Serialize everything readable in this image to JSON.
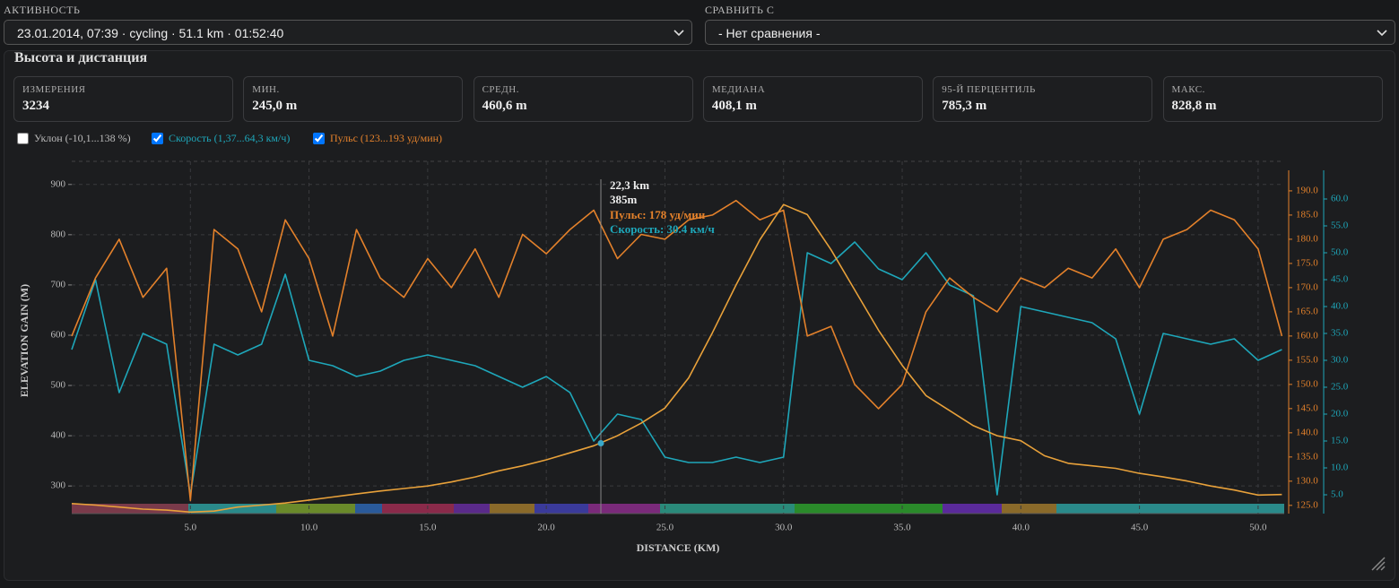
{
  "header": {
    "activity_label": "АКТИВНОСТЬ",
    "activity_value": "23.01.2014, 07:39 · cycling · 51.1 km · 01:52:40",
    "compare_label": "СРАВНИТЬ С",
    "compare_value": "- Нет сравнения -"
  },
  "panel": {
    "title": "Высота и дистанция"
  },
  "stats": [
    {
      "label": "ИЗМЕРЕНИЯ",
      "value": "3234"
    },
    {
      "label": "МИН.",
      "value": "245,0 m"
    },
    {
      "label": "СРЕДН.",
      "value": "460,6 m"
    },
    {
      "label": "МЕДИАНА",
      "value": "408,1 m"
    },
    {
      "label": "95-Й ПЕРЦЕНТИЛЬ",
      "value": "785,3 m"
    },
    {
      "label": "МАКС.",
      "value": "828,8 m"
    }
  ],
  "chart_data": {
    "type": "line",
    "xlabel": "DISTANCE (KM)",
    "ylabel": "ELEVATION GAIN (M)",
    "grid": true,
    "x": [
      0,
      1,
      2,
      3,
      4,
      5,
      6,
      7,
      8,
      9,
      10,
      11,
      12,
      13,
      14,
      15,
      16,
      17,
      18,
      19,
      20,
      21,
      22,
      23,
      24,
      25,
      26,
      27,
      28,
      29,
      30,
      31,
      32,
      33,
      34,
      35,
      36,
      37,
      38,
      39,
      40,
      41,
      42,
      43,
      44,
      45,
      46,
      47,
      48,
      49,
      50,
      51
    ],
    "xlim": [
      0,
      51.1
    ],
    "xticks": [
      {
        "value": 5,
        "label": "5.0"
      },
      {
        "value": 10,
        "label": "10.0"
      },
      {
        "value": 15,
        "label": "15.0"
      },
      {
        "value": 20,
        "label": "20.0"
      },
      {
        "value": 25,
        "label": "25.0"
      },
      {
        "value": 30,
        "label": "30.0"
      },
      {
        "value": 35,
        "label": "35.0"
      },
      {
        "value": 40,
        "label": "40.0"
      },
      {
        "value": 45,
        "label": "45.0"
      },
      {
        "value": 50,
        "label": "50.0"
      }
    ],
    "ylim": [
      245,
      946
    ],
    "yticks": [
      300,
      400,
      500,
      600,
      700,
      800,
      900
    ],
    "y2lim": [
      123.3,
      196.1
    ],
    "y2ticks": [
      {
        "value": 125,
        "label": "125.0"
      },
      {
        "value": 130,
        "label": "130.0"
      },
      {
        "value": 135,
        "label": "135.0"
      },
      {
        "value": 140,
        "label": "140.0"
      },
      {
        "value": 145,
        "label": "145.0"
      },
      {
        "value": 150,
        "label": "150.0"
      },
      {
        "value": 155,
        "label": "155.0"
      },
      {
        "value": 160,
        "label": "160.0"
      },
      {
        "value": 165,
        "label": "165.0"
      },
      {
        "value": 170,
        "label": "170.0"
      },
      {
        "value": 175,
        "label": "175.0"
      },
      {
        "value": 180,
        "label": "180.0"
      },
      {
        "value": 185,
        "label": "185.0"
      },
      {
        "value": 190,
        "label": "190.0"
      }
    ],
    "y3lim": [
      1.5,
      67
    ],
    "y3ticks": [
      {
        "value": 5,
        "label": "5.0"
      },
      {
        "value": 10,
        "label": "10.0"
      },
      {
        "value": 15,
        "label": "15.0"
      },
      {
        "value": 20,
        "label": "20.0"
      },
      {
        "value": 25,
        "label": "25.0"
      },
      {
        "value": 30,
        "label": "30.0"
      },
      {
        "value": 35,
        "label": "35.0"
      },
      {
        "value": 40,
        "label": "40.0"
      },
      {
        "value": 45,
        "label": "45.0"
      },
      {
        "value": 50,
        "label": "50.0"
      },
      {
        "value": 55,
        "label": "55.0"
      },
      {
        "value": 60,
        "label": "60.0"
      }
    ],
    "elevation": {
      "color": "#e8a13a",
      "values": [
        265,
        262,
        258,
        254,
        252,
        248,
        250,
        258,
        262,
        266,
        272,
        278,
        284,
        290,
        295,
        300,
        308,
        318,
        330,
        340,
        352,
        366,
        380,
        400,
        425,
        455,
        515,
        605,
        700,
        790,
        860,
        840,
        770,
        690,
        610,
        540,
        480,
        450,
        420,
        400,
        390,
        360,
        345,
        340,
        335,
        325,
        318,
        310,
        300,
        292,
        282,
        283
      ]
    },
    "series": [
      {
        "name": "Уклон (-10,1...138 %)",
        "checked": false,
        "color": "#aaaaaa"
      },
      {
        "name": "Скорость (1,37...64,3 км/ч)",
        "checked": true,
        "color": "#1ea7ba",
        "axis": "y3",
        "values": [
          32,
          45,
          24,
          35,
          33,
          5,
          33,
          31,
          33,
          46,
          30,
          29,
          27,
          28,
          30,
          31,
          30,
          29,
          27,
          25,
          27,
          24,
          15,
          20,
          19,
          12,
          11,
          11,
          12,
          11,
          12,
          50,
          48,
          52,
          47,
          45,
          50,
          44,
          42,
          5,
          40,
          39,
          38,
          37,
          34,
          20,
          35,
          34,
          33,
          34,
          30,
          32
        ]
      },
      {
        "name": "Пульс (123...193 уд/мин)",
        "checked": true,
        "color": "#e3812b",
        "axis": "y2",
        "values": [
          160,
          172,
          180,
          168,
          174,
          126,
          182,
          178,
          165,
          184,
          176,
          160,
          182,
          172,
          168,
          176,
          170,
          178,
          168,
          181,
          177,
          182,
          186,
          176,
          181,
          180,
          184,
          185,
          188,
          184,
          186,
          160,
          162,
          150,
          145,
          150,
          165,
          172,
          168,
          165,
          172,
          170,
          174,
          172,
          178,
          170,
          180,
          182,
          186,
          184,
          178,
          160
        ]
      }
    ],
    "tooltip": {
      "x": {
        "value": 22.3,
        "label": "22,3 km"
      },
      "y": {
        "value": 385,
        "label": "385m"
      },
      "lines": [
        "Пульс: 178 уд/мин",
        "Скорость: 30.4 км/ч"
      ]
    }
  }
}
